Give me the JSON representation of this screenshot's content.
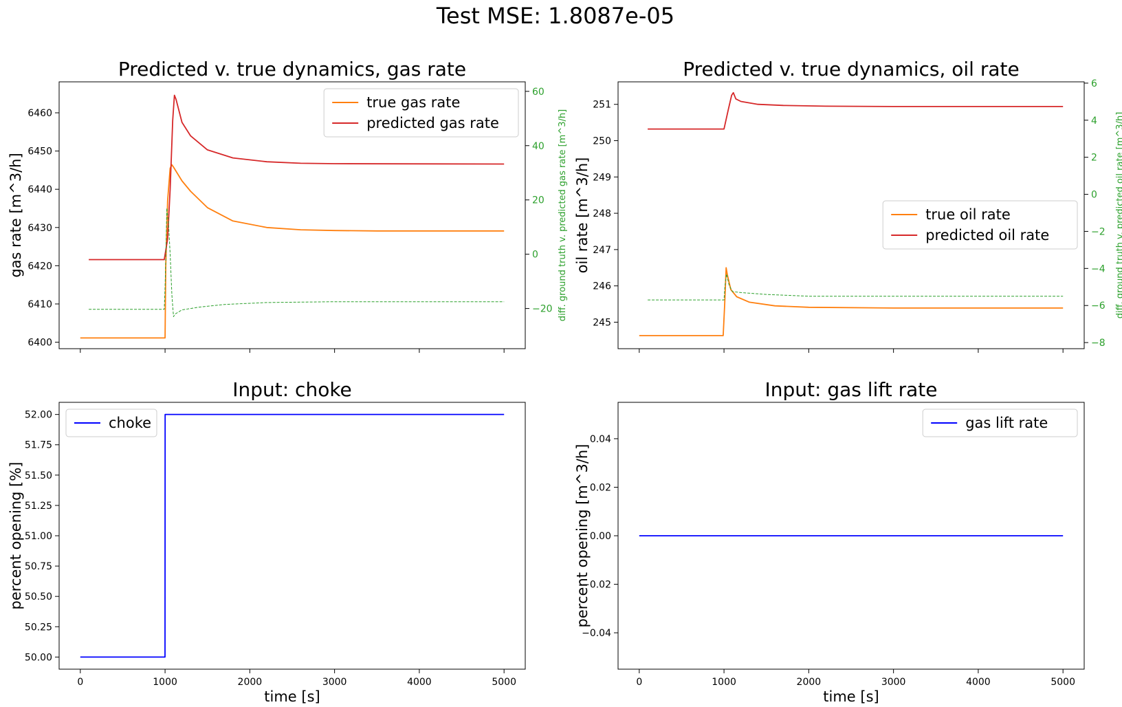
{
  "title": "Test MSE: 1.8087e-05",
  "colors": {
    "true": "#ff7f0e",
    "predicted": "#d62728",
    "diff": "#2ca02c",
    "input": "#0000ff"
  },
  "chart_data": [
    {
      "type": "line",
      "title": "Predicted v. true dynamics, gas rate",
      "xlabel": "",
      "ylabel": "gas rate [m^3/h]",
      "ylabel2": "diff. ground truth v. predicted gas rate [m^3/h]",
      "xlim": [
        -250,
        5250
      ],
      "ylim": [
        6398.3,
        6468.1
      ],
      "ylim2": [
        -34.8,
        63.5
      ],
      "xticks": [
        0,
        1000,
        2000,
        3000,
        4000,
        5000
      ],
      "yticks": [
        6400,
        6410,
        6420,
        6430,
        6440,
        6450,
        6460
      ],
      "yticks2": [
        -20,
        0,
        20,
        40,
        60
      ],
      "legend_position": "top-right",
      "series": [
        {
          "name": "true gas rate",
          "axis": "left",
          "points": [
            [
              0,
              6401.1
            ],
            [
              1000,
              6401.1
            ],
            [
              1008,
              6420
            ],
            [
              1030,
              6437
            ],
            [
              1060,
              6445.5
            ],
            [
              1080,
              6446.4
            ],
            [
              1100,
              6445.8
            ],
            [
              1200,
              6442.2
            ],
            [
              1300,
              6439.5
            ],
            [
              1500,
              6435.2
            ],
            [
              1800,
              6431.7
            ],
            [
              2200,
              6430.0
            ],
            [
              2600,
              6429.4
            ],
            [
              3000,
              6429.2
            ],
            [
              3500,
              6429.1
            ],
            [
              4000,
              6429.1
            ],
            [
              5000,
              6429.1
            ]
          ]
        },
        {
          "name": "predicted gas rate",
          "axis": "left",
          "points": [
            [
              100,
              6421.6
            ],
            [
              990,
              6421.6
            ],
            [
              1030,
              6427
            ],
            [
              1060,
              6440
            ],
            [
              1090,
              6458
            ],
            [
              1110,
              6464.6
            ],
            [
              1130,
              6463.5
            ],
            [
              1200,
              6457.5
            ],
            [
              1300,
              6454
            ],
            [
              1500,
              6450.3
            ],
            [
              1800,
              6448.2
            ],
            [
              2200,
              6447.2
            ],
            [
              2600,
              6446.8
            ],
            [
              3000,
              6446.7
            ],
            [
              5000,
              6446.6
            ]
          ]
        },
        {
          "name": "",
          "axis": "right",
          "dashed": true,
          "points": [
            [
              100,
              -20.3
            ],
            [
              990,
              -20.3
            ],
            [
              1000,
              -12
            ],
            [
              1010,
              0
            ],
            [
              1020,
              17
            ],
            [
              1040,
              12
            ],
            [
              1060,
              0
            ],
            [
              1080,
              -15
            ],
            [
              1100,
              -23
            ],
            [
              1120,
              -22
            ],
            [
              1200,
              -20.5
            ],
            [
              1400,
              -19.5
            ],
            [
              1700,
              -18.5
            ],
            [
              2200,
              -17.8
            ],
            [
              3000,
              -17.5
            ],
            [
              5000,
              -17.5
            ]
          ]
        }
      ]
    },
    {
      "type": "line",
      "title": "Predicted v. true dynamics, oil rate",
      "xlabel": "",
      "ylabel": "oil rate [m^3/h]",
      "ylabel2": "diff. ground truth v. predicted oil rate [m^3/h]",
      "xlim": [
        -250,
        5250
      ],
      "ylim": [
        244.27,
        251.62
      ],
      "ylim2": [
        -8.33,
        6.07
      ],
      "xticks": [
        0,
        1000,
        2000,
        3000,
        4000,
        5000
      ],
      "yticks": [
        245,
        246,
        247,
        248,
        249,
        250,
        251
      ],
      "yticks2": [
        -8,
        -6,
        -4,
        -2,
        0,
        2,
        4,
        6
      ],
      "legend_position": "center-right",
      "series": [
        {
          "name": "true oil rate",
          "axis": "left",
          "points": [
            [
              0,
              244.63
            ],
            [
              990,
              244.63
            ],
            [
              1008,
              245.5
            ],
            [
              1025,
              246.5
            ],
            [
              1040,
              246.3
            ],
            [
              1080,
              245.9
            ],
            [
              1150,
              245.7
            ],
            [
              1300,
              245.55
            ],
            [
              1600,
              245.45
            ],
            [
              2000,
              245.41
            ],
            [
              3000,
              245.39
            ],
            [
              5000,
              245.39
            ]
          ]
        },
        {
          "name": "predicted oil rate",
          "axis": "left",
          "points": [
            [
              100,
              250.32
            ],
            [
              1000,
              250.32
            ],
            [
              1050,
              250.85
            ],
            [
              1090,
              251.25
            ],
            [
              1110,
              251.32
            ],
            [
              1140,
              251.15
            ],
            [
              1200,
              251.08
            ],
            [
              1400,
              251.0
            ],
            [
              1700,
              250.97
            ],
            [
              2200,
              250.95
            ],
            [
              3000,
              250.94
            ],
            [
              5000,
              250.94
            ]
          ]
        },
        {
          "name": "",
          "axis": "right",
          "dashed": true,
          "points": [
            [
              100,
              -5.7
            ],
            [
              1000,
              -5.7
            ],
            [
              1010,
              -5.0
            ],
            [
              1030,
              -4.3
            ],
            [
              1060,
              -4.9
            ],
            [
              1100,
              -5.25
            ],
            [
              1200,
              -5.3
            ],
            [
              1500,
              -5.4
            ],
            [
              2000,
              -5.5
            ],
            [
              3000,
              -5.5
            ],
            [
              5000,
              -5.5
            ]
          ]
        }
      ]
    },
    {
      "type": "line",
      "title": "Input: choke",
      "xlabel": "time [s]",
      "ylabel": "percent opening [%]",
      "xlim": [
        -250,
        5250
      ],
      "ylim": [
        49.9,
        52.1
      ],
      "xticks": [
        0,
        1000,
        2000,
        3000,
        4000,
        5000
      ],
      "yticks": [
        50.0,
        50.25,
        50.5,
        50.75,
        51.0,
        51.25,
        51.5,
        51.75,
        52.0
      ],
      "ytick_labels": [
        "50.00",
        "50.25",
        "50.50",
        "50.75",
        "51.00",
        "51.25",
        "51.50",
        "51.75",
        "52.00"
      ],
      "legend_position": "top-left",
      "series": [
        {
          "name": "choke",
          "axis": "left",
          "points": [
            [
              0,
              50.0
            ],
            [
              999,
              50.0
            ],
            [
              1001,
              52.0
            ],
            [
              5000,
              52.0
            ]
          ]
        }
      ]
    },
    {
      "type": "line",
      "title": "Input: gas lift rate",
      "xlabel": "time [s]",
      "ylabel": "percent opening [m^3/h]",
      "xlim": [
        -250,
        5250
      ],
      "ylim": [
        -0.055,
        0.055
      ],
      "xticks": [
        0,
        1000,
        2000,
        3000,
        4000,
        5000
      ],
      "yticks": [
        -0.04,
        -0.02,
        0.0,
        0.02,
        0.04
      ],
      "ytick_labels": [
        "−0.04",
        "−0.02",
        "0.00",
        "0.02",
        "0.04"
      ],
      "legend_position": "top-right",
      "series": [
        {
          "name": "gas lift rate",
          "axis": "left",
          "points": [
            [
              0,
              0.0
            ],
            [
              5000,
              0.0
            ]
          ]
        }
      ]
    }
  ]
}
